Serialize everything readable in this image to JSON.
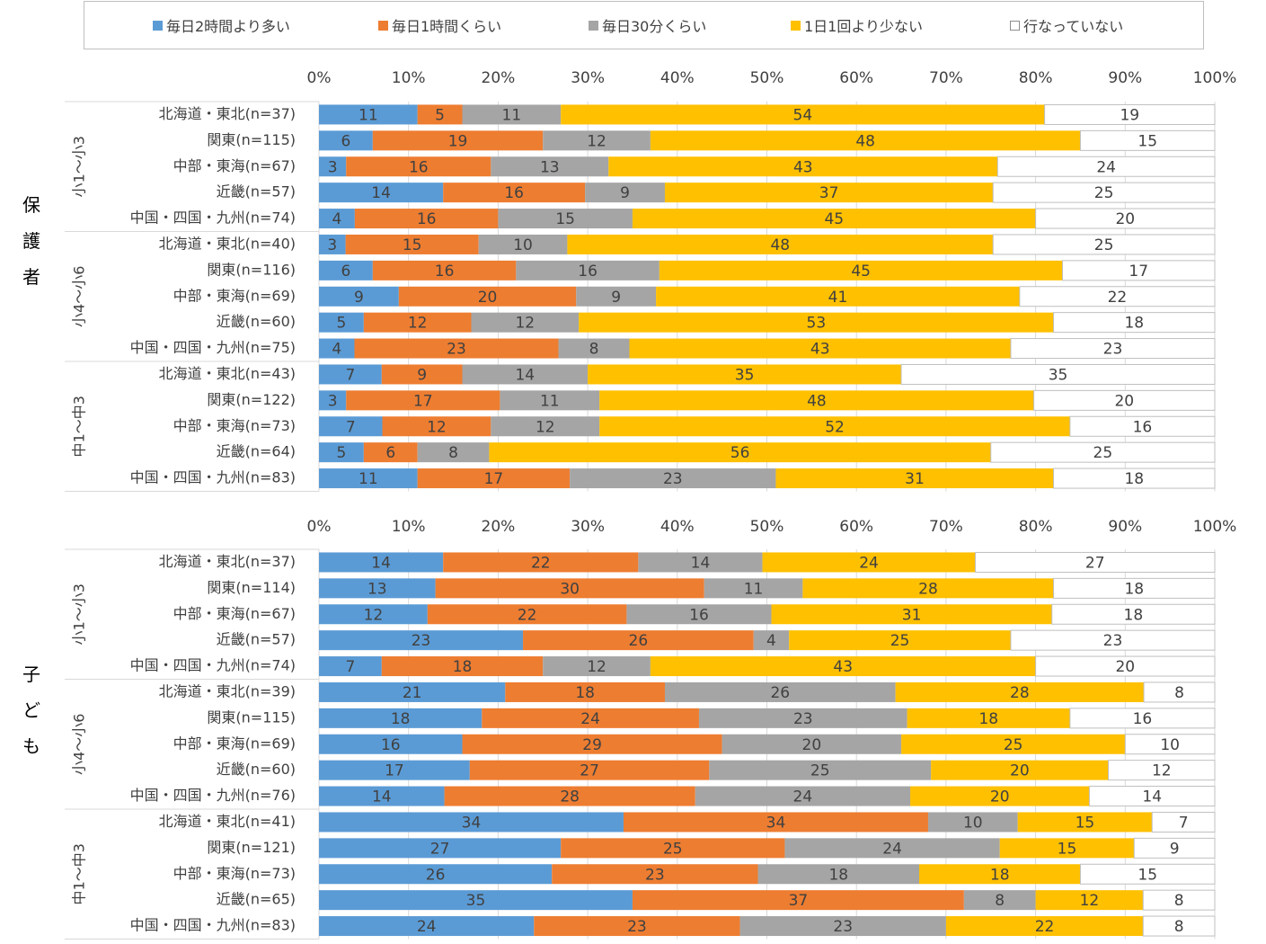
{
  "legend": [
    {
      "label": "毎日2時間より多い",
      "color": "#5B9BD5"
    },
    {
      "label": "毎日1時間くらい",
      "color": "#ED7D31"
    },
    {
      "label": "毎日30分くらい",
      "color": "#A5A5A5"
    },
    {
      "label": "1日1回より少ない",
      "color": "#FFC000"
    },
    {
      "label": "行なっていない",
      "color": "#FFFFFF"
    }
  ],
  "section_labels": [
    "保護者",
    "子ども"
  ],
  "axis_ticks": [
    "0%",
    "10%",
    "20%",
    "30%",
    "40%",
    "50%",
    "60%",
    "70%",
    "80%",
    "90%",
    "100%"
  ],
  "chart_data": [
    {
      "type": "bar",
      "orientation": "horizontal",
      "stacked": true,
      "panel": "保護者",
      "xlim": [
        0,
        100
      ],
      "series_names": [
        "毎日2時間より多い",
        "毎日1時間くらい",
        "毎日30分くらい",
        "1日1回より少ない",
        "行なっていない"
      ],
      "groups": [
        {
          "label": "小1～小3",
          "rows": [
            {
              "label": "北海道・東北(n=37)",
              "values": [
                11,
                5,
                11,
                54,
                19
              ]
            },
            {
              "label": "関東(n=115)",
              "values": [
                6,
                19,
                12,
                48,
                15
              ]
            },
            {
              "label": "中部・東海(n=67)",
              "values": [
                3,
                16,
                13,
                43,
                24
              ]
            },
            {
              "label": "近畿(n=57)",
              "values": [
                14,
                16,
                9,
                37,
                25
              ]
            },
            {
              "label": "中国・四国・九州(n=74)",
              "values": [
                4,
                16,
                15,
                45,
                20
              ]
            }
          ]
        },
        {
          "label": "小4～小6",
          "rows": [
            {
              "label": "北海道・東北(n=40)",
              "values": [
                3,
                15,
                10,
                48,
                25
              ]
            },
            {
              "label": "関東(n=116)",
              "values": [
                6,
                16,
                16,
                45,
                17
              ]
            },
            {
              "label": "中部・東海(n=69)",
              "values": [
                9,
                20,
                9,
                41,
                22
              ]
            },
            {
              "label": "近畿(n=60)",
              "values": [
                5,
                12,
                12,
                53,
                18
              ]
            },
            {
              "label": "中国・四国・九州(n=75)",
              "values": [
                4,
                23,
                8,
                43,
                23
              ]
            }
          ]
        },
        {
          "label": "中1～中3",
          "rows": [
            {
              "label": "北海道・東北(n=43)",
              "values": [
                7,
                9,
                14,
                35,
                35
              ]
            },
            {
              "label": "関東(n=122)",
              "values": [
                3,
                17,
                11,
                48,
                20
              ]
            },
            {
              "label": "中部・東海(n=73)",
              "values": [
                7,
                12,
                12,
                52,
                16
              ]
            },
            {
              "label": "近畿(n=64)",
              "values": [
                5,
                6,
                8,
                56,
                25
              ]
            },
            {
              "label": "中国・四国・九州(n=83)",
              "values": [
                11,
                17,
                23,
                31,
                18
              ]
            }
          ]
        }
      ]
    },
    {
      "type": "bar",
      "orientation": "horizontal",
      "stacked": true,
      "panel": "子ども",
      "xlim": [
        0,
        100
      ],
      "series_names": [
        "毎日2時間より多い",
        "毎日1時間くらい",
        "毎日30分くらい",
        "1日1回より少ない",
        "行なっていない"
      ],
      "groups": [
        {
          "label": "小1～小3",
          "rows": [
            {
              "label": "北海道・東北(n=37)",
              "values": [
                14,
                22,
                14,
                24,
                27
              ]
            },
            {
              "label": "関東(n=114)",
              "values": [
                13,
                30,
                11,
                28,
                18
              ]
            },
            {
              "label": "中部・東海(n=67)",
              "values": [
                12,
                22,
                16,
                31,
                18
              ]
            },
            {
              "label": "近畿(n=57)",
              "values": [
                23,
                26,
                4,
                25,
                23
              ]
            },
            {
              "label": "中国・四国・九州(n=74)",
              "values": [
                7,
                18,
                12,
                43,
                20
              ]
            }
          ]
        },
        {
          "label": "小4～小6",
          "rows": [
            {
              "label": "北海道・東北(n=39)",
              "values": [
                21,
                18,
                26,
                28,
                8
              ]
            },
            {
              "label": "関東(n=115)",
              "values": [
                18,
                24,
                23,
                18,
                16
              ]
            },
            {
              "label": "中部・東海(n=69)",
              "values": [
                16,
                29,
                20,
                25,
                10
              ]
            },
            {
              "label": "近畿(n=60)",
              "values": [
                17,
                27,
                25,
                20,
                12
              ]
            },
            {
              "label": "中国・四国・九州(n=76)",
              "values": [
                14,
                28,
                24,
                20,
                14
              ]
            }
          ]
        },
        {
          "label": "中1～中3",
          "rows": [
            {
              "label": "北海道・東北(n=41)",
              "values": [
                34,
                34,
                10,
                15,
                7
              ]
            },
            {
              "label": "関東(n=121)",
              "values": [
                27,
                25,
                24,
                15,
                9
              ]
            },
            {
              "label": "中部・東海(n=73)",
              "values": [
                26,
                23,
                18,
                18,
                15
              ]
            },
            {
              "label": "近畿(n=65)",
              "values": [
                35,
                37,
                8,
                12,
                8
              ]
            },
            {
              "label": "中国・四国・九州(n=83)",
              "values": [
                24,
                23,
                23,
                22,
                8
              ]
            }
          ]
        }
      ]
    }
  ]
}
